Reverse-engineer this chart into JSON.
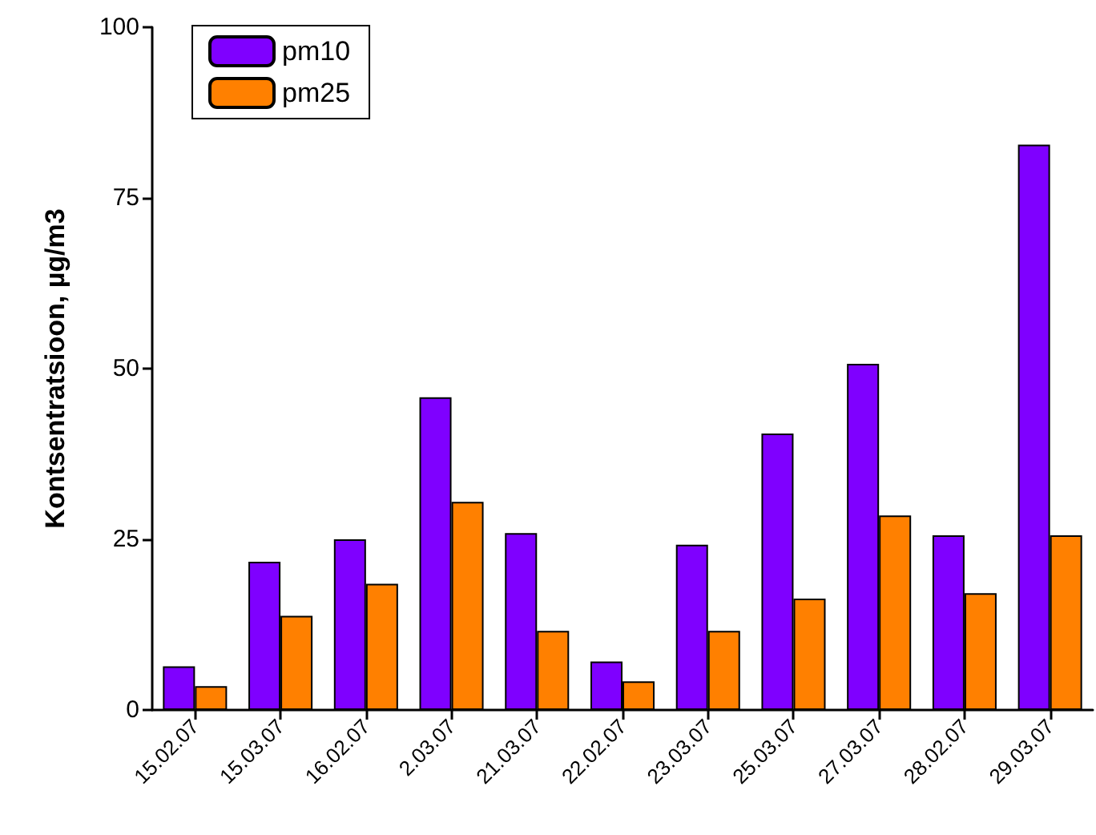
{
  "chart_data": {
    "type": "bar",
    "ylabel": "Kontsentratsioon, µg/m3",
    "categories": [
      "15.02.07",
      "15.03.07",
      "16.02.07",
      "2.03.07",
      "21.03.07",
      "22.02.07",
      "23.03.07",
      "25.03.07",
      "27.03.07",
      "28.02.07",
      "29.03.07"
    ],
    "series": [
      {
        "name": "pm10",
        "color": "#7f00ff",
        "values": [
          6.4,
          21.7,
          25.0,
          45.8,
          25.9,
          7.1,
          24.2,
          40.5,
          50.7,
          25.6,
          82.8
        ]
      },
      {
        "name": "pm25",
        "color": "#ff8000",
        "values": [
          3.5,
          13.8,
          18.5,
          30.5,
          11.6,
          4.2,
          11.6,
          16.3,
          28.5,
          17.1,
          25.6
        ]
      }
    ],
    "ylim": [
      0,
      100
    ],
    "yticks": [
      0,
      25,
      50,
      75,
      100
    ],
    "grid": false,
    "legend": "top left"
  }
}
